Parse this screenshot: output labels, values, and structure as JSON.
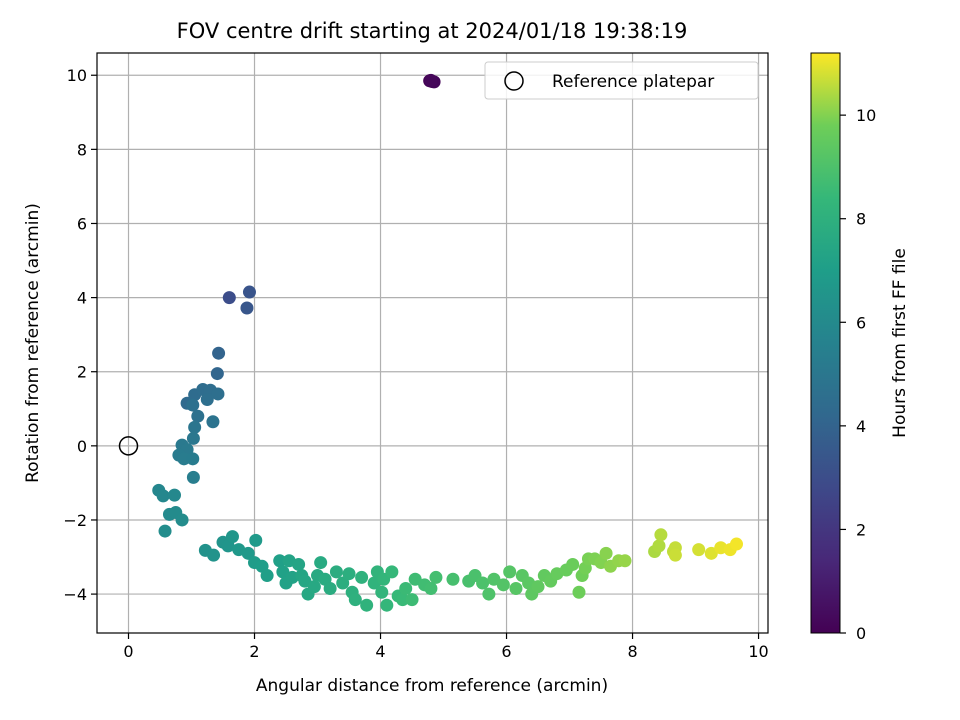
{
  "chart_data": {
    "type": "scatter",
    "title": "FOV centre drift starting at 2024/01/18 19:38:19",
    "xlabel": "Angular distance from reference (arcmin)",
    "ylabel": "Rotation from reference (arcmin)",
    "xlim": [
      -0.5,
      10.15
    ],
    "ylim": [
      -5.05,
      10.6
    ],
    "xticks": [
      0,
      2,
      4,
      6,
      8,
      10
    ],
    "yticks": [
      -4,
      -2,
      0,
      2,
      4,
      6,
      8,
      10
    ],
    "grid": true,
    "legend": {
      "position": "upper-right",
      "entries": [
        "Reference platepar"
      ]
    },
    "reference_point": {
      "name": "Reference platepar",
      "x": 0,
      "y": 0
    },
    "colorbar": {
      "label": "Hours from first FF file",
      "range": [
        0,
        11.2
      ],
      "ticks": [
        0,
        2,
        4,
        6,
        8,
        10
      ],
      "colormap": "viridis"
    },
    "points": [
      [
        4.78,
        9.85,
        0.05
      ],
      [
        4.82,
        9.83,
        0.1
      ],
      [
        4.85,
        9.82,
        0.15
      ],
      [
        4.8,
        9.86,
        0.2
      ],
      [
        1.6,
        4.0,
        3.0
      ],
      [
        1.92,
        4.15,
        3.3
      ],
      [
        1.88,
        3.72,
        3.4
      ],
      [
        1.43,
        2.5,
        4.0
      ],
      [
        1.41,
        1.95,
        4.1
      ],
      [
        0.93,
        1.15,
        4.3
      ],
      [
        1.05,
        1.38,
        4.4
      ],
      [
        1.18,
        1.52,
        4.45
      ],
      [
        1.3,
        1.5,
        4.5
      ],
      [
        1.42,
        1.4,
        4.55
      ],
      [
        1.25,
        1.25,
        4.6
      ],
      [
        1.02,
        1.1,
        4.65
      ],
      [
        1.1,
        0.8,
        4.7
      ],
      [
        1.34,
        0.65,
        4.8
      ],
      [
        1.05,
        0.5,
        4.9
      ],
      [
        1.03,
        0.2,
        5.0
      ],
      [
        0.85,
        0.02,
        5.1
      ],
      [
        0.93,
        -0.1,
        5.15
      ],
      [
        0.8,
        -0.25,
        5.2
      ],
      [
        0.88,
        -0.35,
        5.25
      ],
      [
        1.02,
        -0.35,
        5.3
      ],
      [
        1.03,
        -0.85,
        5.4
      ],
      [
        0.48,
        -1.2,
        5.8
      ],
      [
        0.55,
        -1.35,
        5.85
      ],
      [
        0.73,
        -1.33,
        5.9
      ],
      [
        0.65,
        -1.85,
        6.0
      ],
      [
        0.75,
        -1.8,
        6.05
      ],
      [
        0.85,
        -2.0,
        6.1
      ],
      [
        0.58,
        -2.3,
        6.15
      ],
      [
        1.22,
        -2.82,
        6.4
      ],
      [
        1.35,
        -2.95,
        6.45
      ],
      [
        1.5,
        -2.6,
        6.5
      ],
      [
        1.58,
        -2.7,
        6.55
      ],
      [
        1.65,
        -2.45,
        6.6
      ],
      [
        1.75,
        -2.8,
        6.7
      ],
      [
        1.9,
        -2.9,
        6.75
      ],
      [
        2.02,
        -2.55,
        6.8
      ],
      [
        2.0,
        -3.15,
        6.9
      ],
      [
        2.12,
        -3.25,
        7.0
      ],
      [
        2.2,
        -3.5,
        7.05
      ],
      [
        2.4,
        -3.1,
        7.1
      ],
      [
        2.45,
        -3.4,
        7.15
      ],
      [
        2.5,
        -3.7,
        7.2
      ],
      [
        2.6,
        -3.55,
        7.25
      ],
      [
        2.55,
        -3.1,
        7.3
      ],
      [
        2.7,
        -3.2,
        7.35
      ],
      [
        2.75,
        -3.5,
        7.4
      ],
      [
        2.8,
        -3.65,
        7.45
      ],
      [
        2.85,
        -4.0,
        7.5
      ],
      [
        2.95,
        -3.8,
        7.55
      ],
      [
        3.0,
        -3.5,
        7.6
      ],
      [
        3.05,
        -3.15,
        7.65
      ],
      [
        3.12,
        -3.6,
        7.7
      ],
      [
        3.2,
        -3.85,
        7.75
      ],
      [
        3.3,
        -3.4,
        7.8
      ],
      [
        3.4,
        -3.7,
        7.85
      ],
      [
        3.5,
        -3.45,
        7.9
      ],
      [
        3.55,
        -3.95,
        7.95
      ],
      [
        3.6,
        -4.15,
        8.0
      ],
      [
        3.7,
        -3.55,
        8.05
      ],
      [
        3.78,
        -4.3,
        8.1
      ],
      [
        3.9,
        -3.7,
        8.15
      ],
      [
        3.95,
        -3.4,
        8.2
      ],
      [
        4.02,
        -3.95,
        8.25
      ],
      [
        4.05,
        -3.6,
        8.3
      ],
      [
        4.1,
        -4.3,
        8.35
      ],
      [
        4.18,
        -3.4,
        8.4
      ],
      [
        4.28,
        -4.05,
        8.45
      ],
      [
        4.35,
        -4.15,
        8.5
      ],
      [
        4.4,
        -3.85,
        8.55
      ],
      [
        4.5,
        -4.15,
        8.6
      ],
      [
        4.55,
        -3.6,
        8.65
      ],
      [
        4.7,
        -3.75,
        8.7
      ],
      [
        4.8,
        -3.85,
        8.75
      ],
      [
        4.88,
        -3.55,
        8.8
      ],
      [
        5.15,
        -3.6,
        8.85
      ],
      [
        5.4,
        -3.65,
        8.9
      ],
      [
        5.5,
        -3.5,
        8.95
      ],
      [
        5.62,
        -3.7,
        9.0
      ],
      [
        5.72,
        -4.0,
        9.05
      ],
      [
        5.8,
        -3.6,
        9.1
      ],
      [
        5.95,
        -3.75,
        9.15
      ],
      [
        6.05,
        -3.4,
        9.2
      ],
      [
        6.15,
        -3.85,
        9.25
      ],
      [
        6.25,
        -3.5,
        9.3
      ],
      [
        6.35,
        -3.7,
        9.35
      ],
      [
        6.4,
        -4.0,
        9.4
      ],
      [
        6.5,
        -3.8,
        9.45
      ],
      [
        6.6,
        -3.5,
        9.5
      ],
      [
        6.7,
        -3.65,
        9.55
      ],
      [
        6.8,
        -3.45,
        9.6
      ],
      [
        6.95,
        -3.35,
        9.65
      ],
      [
        7.05,
        -3.2,
        9.7
      ],
      [
        7.15,
        -3.95,
        9.75
      ],
      [
        7.2,
        -3.5,
        9.8
      ],
      [
        7.25,
        -3.3,
        9.85
      ],
      [
        7.3,
        -3.05,
        9.9
      ],
      [
        7.4,
        -3.05,
        9.95
      ],
      [
        7.5,
        -3.15,
        10.0
      ],
      [
        7.58,
        -2.9,
        10.05
      ],
      [
        7.65,
        -3.25,
        10.1
      ],
      [
        7.78,
        -3.1,
        10.15
      ],
      [
        7.88,
        -3.1,
        10.2
      ],
      [
        8.35,
        -2.85,
        10.4
      ],
      [
        8.42,
        -2.7,
        10.45
      ],
      [
        8.45,
        -2.4,
        10.5
      ],
      [
        8.65,
        -2.85,
        10.6
      ],
      [
        8.68,
        -2.75,
        10.65
      ],
      [
        8.68,
        -2.95,
        10.7
      ],
      [
        9.05,
        -2.8,
        10.8
      ],
      [
        9.25,
        -2.9,
        10.9
      ],
      [
        9.4,
        -2.75,
        11.0
      ],
      [
        9.55,
        -2.8,
        11.05
      ],
      [
        9.65,
        -2.65,
        11.1
      ]
    ]
  }
}
